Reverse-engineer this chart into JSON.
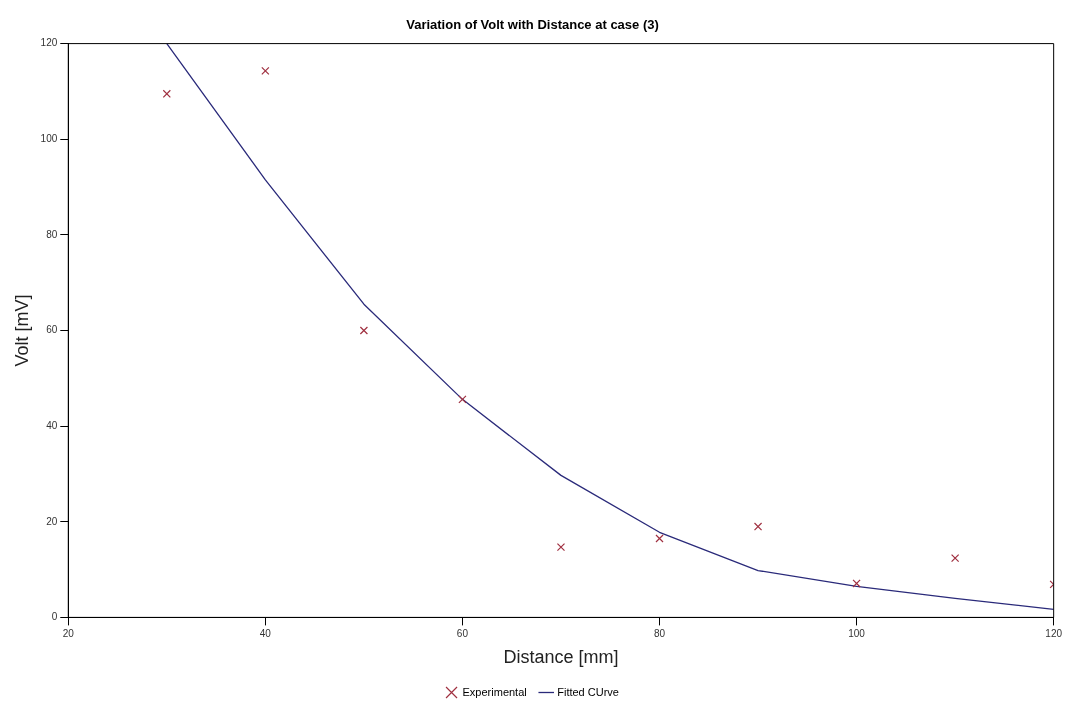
{
  "chart_data": {
    "type": "scatter",
    "title": "Variation of Volt with Distance at case (3)",
    "xlabel": "Distance [mm]",
    "ylabel": "Volt [mV]",
    "xlim": [
      20,
      120
    ],
    "xticks": [
      20,
      40,
      60,
      80,
      100,
      120
    ],
    "ylim": [
      0,
      120
    ],
    "yticks": [
      0,
      20,
      40,
      60,
      80,
      100,
      120
    ],
    "grid": false,
    "legend": "bottom",
    "series": [
      {
        "name": "Experimental",
        "marker": "cross",
        "color": "#a03040",
        "x": [
          30,
          40,
          50,
          60,
          70,
          80,
          90,
          100,
          110,
          120
        ],
        "values": [
          109.5,
          114.3,
          60,
          45.6,
          14.7,
          16.5,
          19,
          7.1,
          12.4,
          6.9
        ]
      },
      {
        "name": "Fitted CUrve",
        "type": "line",
        "marker": "none",
        "color": "#2a2a7a",
        "x": [
          30,
          40,
          50,
          60,
          70,
          80,
          90,
          100,
          110,
          120
        ],
        "values": [
          120,
          91.5,
          65.5,
          45.6,
          29.7,
          17.8,
          9.8,
          6.5,
          4,
          1.7
        ]
      }
    ]
  }
}
